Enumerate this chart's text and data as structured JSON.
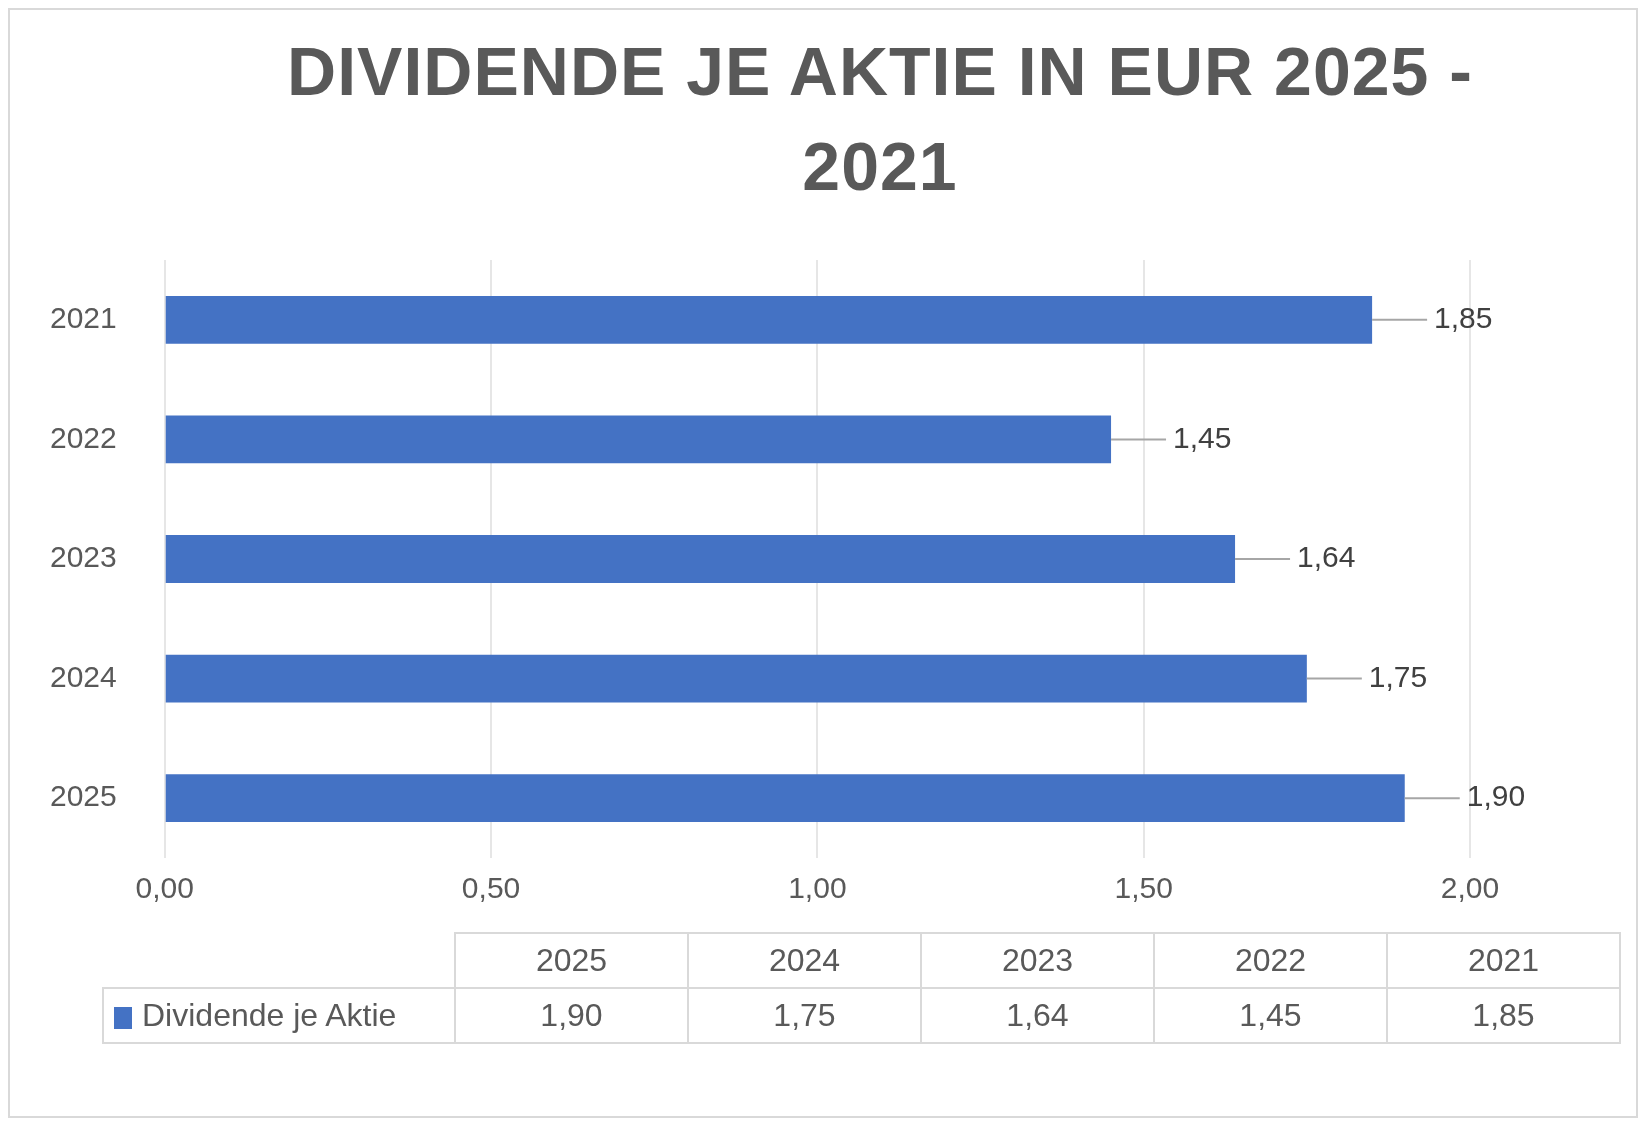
{
  "chart_data": {
    "type": "bar",
    "orientation": "horizontal",
    "title": "DIVIDENDE JE AKTIE IN EUR 2025 - 2021",
    "categories": [
      "2021",
      "2022",
      "2023",
      "2024",
      "2025"
    ],
    "series": [
      {
        "name": "Dividende je Aktie",
        "color": "#4472c4",
        "values": [
          1.85,
          1.45,
          1.64,
          1.75,
          1.9
        ],
        "value_labels": [
          "1,85",
          "1,45",
          "1,64",
          "1,75",
          "1,90"
        ]
      }
    ],
    "xlim": [
      0,
      2
    ],
    "xticks": [
      {
        "value": 0,
        "label": "0,00"
      },
      {
        "value": 0.5,
        "label": "0,50"
      },
      {
        "value": 1,
        "label": "1,00"
      },
      {
        "value": 1.5,
        "label": "1,50"
      },
      {
        "value": 2,
        "label": "2,00"
      }
    ],
    "grid": "x",
    "legend": "bottom"
  }
}
